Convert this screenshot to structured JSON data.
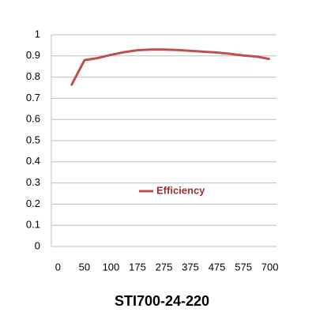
{
  "chart_data": {
    "type": "line",
    "title": "STI700-24-220",
    "categories": [
      "0",
      null,
      "50",
      null,
      "100",
      null,
      "175",
      null,
      "275",
      null,
      "375",
      null,
      "475",
      null,
      "575",
      null,
      "700"
    ],
    "series": [
      {
        "name": "Efficiency",
        "color": "#c0504d",
        "values": [
          null,
          0.76,
          0.88,
          0.89,
          0.905,
          0.918,
          0.927,
          0.93,
          0.93,
          0.928,
          0.924,
          0.92,
          0.916,
          0.91,
          0.902,
          0.897,
          0.885
        ]
      }
    ],
    "ylim": [
      0,
      1
    ],
    "yticks": [
      0,
      0.1,
      0.2,
      0.3,
      0.4,
      0.5,
      0.6,
      0.7,
      0.8,
      0.9,
      1
    ],
    "grid": true
  }
}
